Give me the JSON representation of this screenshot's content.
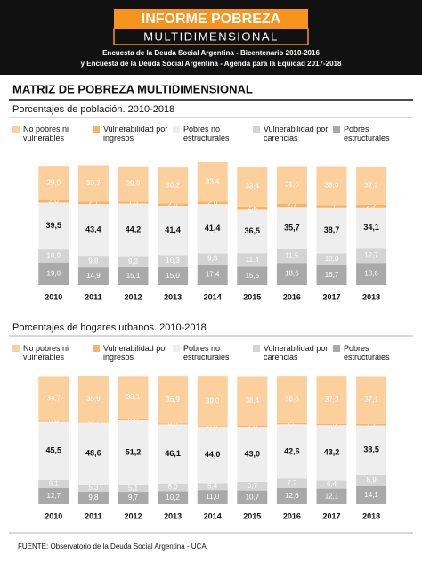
{
  "header": {
    "title": "INFORME POBREZA",
    "title_line2": "MULTIDIMENSIONAL",
    "subtitle_lines": [
      "Encuesta de la Deuda Social Argentina - Bicentenario 2010-2016",
      "y Encuesta de la Deuda Social Argentina - Agenda para la Equidad 2017-2018"
    ]
  },
  "section_title": "MATRIZ DE POBREZA MULTIDIMENSIONAL",
  "chart_data": [
    {
      "type": "bar",
      "stacked": true,
      "title": "Porcentajes de población. 2010-2018",
      "categories": [
        "2010",
        "2011",
        "2012",
        "2013",
        "2014",
        "2015",
        "2016",
        "2017",
        "2018"
      ],
      "series": [
        {
          "name": "No pobres ni vulnerables",
          "color": "#fbd09d",
          "values": [
            29.0,
            30.7,
            29.9,
            30.2,
            33.4,
            33.4,
            31.6,
            33.0,
            32.2
          ],
          "value_labels": [
            "29,0",
            "30,7",
            "29,9",
            "30,2",
            "33,4",
            "33,4",
            "31,6",
            "33,0",
            "32,2"
          ]
        },
        {
          "name": "Vulnerabilidad por ingresos",
          "color": "#f6b36a",
          "values": [
            2.0,
            2.1,
            1.5,
            2.0,
            2.0,
            2.8,
            2.7,
            1.7,
            2.2
          ],
          "value_labels": [
            "2,0",
            "2,1",
            "1,5",
            "2,0",
            "2,0",
            "2,8",
            "2,7",
            "1,7",
            "2,2"
          ]
        },
        {
          "name": "Pobres no estructurales",
          "color": "#eeeeee",
          "values": [
            39.5,
            43.4,
            44.2,
            41.4,
            41.4,
            36.5,
            35.7,
            38.7,
            34.1
          ],
          "value_labels": [
            "39,5",
            "43,4",
            "44,2",
            "41,4",
            "41,4",
            "36,5",
            "35,7",
            "38,7",
            "34,1"
          ]
        },
        {
          "name": "Vulnerabilidad por carencias",
          "color": "#d4d4d4",
          "values": [
            10.9,
            9.8,
            9.3,
            10.3,
            9.3,
            11.4,
            11.5,
            10.0,
            12.7
          ],
          "value_labels": [
            "10,9",
            "9,8",
            "9,3",
            "10,3",
            "9,3",
            "11,4",
            "11,5",
            "10,0",
            "12,7"
          ]
        },
        {
          "name": "Pobres estructurales",
          "color": "#a9a9a9",
          "values": [
            19.0,
            14.9,
            15.1,
            15.0,
            17.4,
            15.5,
            18.6,
            16.7,
            18.6
          ],
          "value_labels": [
            "19,0",
            "14,9",
            "15,1",
            "15,0",
            "17,4",
            "15,5",
            "18,6",
            "16,7",
            "18,6"
          ]
        }
      ]
    },
    {
      "type": "bar",
      "stacked": true,
      "title": "Porcentajes de hogares urbanos. 2010-2018",
      "categories": [
        "2010",
        "2011",
        "2012",
        "2013",
        "2014",
        "2015",
        "2016",
        "2017",
        "2018"
      ],
      "series": [
        {
          "name": "No pobres ni vulnerables",
          "color": "#fbd09d",
          "values": [
            34.7,
            35.9,
            33.1,
            36.9,
            39.0,
            38.4,
            36.6,
            37.3,
            37.1
          ],
          "value_labels": [
            "34,7",
            "35,9",
            "33,1",
            "36,9",
            "39,0",
            "38,4",
            "36,6",
            "37,3",
            "37,1"
          ]
        },
        {
          "name": "Vulnerabilidad por ingresos",
          "color": "#f6b36a",
          "values": [
            0.8,
            0.5,
            0.8,
            0.8,
            0.6,
            1.0,
            1.0,
            1.0,
            1.2
          ],
          "value_labels": [
            "0,8",
            "0,5",
            "0,8",
            "0,8",
            "0,6",
            "1,0",
            "1,0",
            "1,0",
            "1,2"
          ]
        },
        {
          "name": "Pobres no estructurales",
          "color": "#eeeeee",
          "values": [
            45.5,
            48.6,
            51.2,
            46.1,
            44.0,
            43.0,
            42.6,
            43.2,
            38.5
          ],
          "value_labels": [
            "45,5",
            "48,6",
            "51,2",
            "46,1",
            "44,0",
            "43,0",
            "42,6",
            "43,2",
            "38,5"
          ]
        },
        {
          "name": "Vulnerabilidad por carencias",
          "color": "#d4d4d4",
          "values": [
            6.1,
            5.3,
            5.1,
            6.0,
            5.4,
            6.7,
            7.2,
            6.4,
            8.9
          ],
          "value_labels": [
            "6,1",
            "5,3",
            "5,1",
            "6,0",
            "5,4",
            "6,7",
            "7,2",
            "6,4",
            "8,9"
          ]
        },
        {
          "name": "Pobres estructurales",
          "color": "#a9a9a9",
          "values": [
            12.7,
            9.8,
            9.7,
            10.2,
            11.0,
            10.7,
            12.6,
            12.1,
            14.1
          ],
          "value_labels": [
            "12,7",
            "9,8",
            "9,7",
            "10,2",
            "11,0",
            "10,7",
            "12,6",
            "12,1",
            "14,1"
          ]
        }
      ]
    }
  ],
  "footer": "FUENTE: Observatorio de la Deuda Social Argentina - UCA"
}
